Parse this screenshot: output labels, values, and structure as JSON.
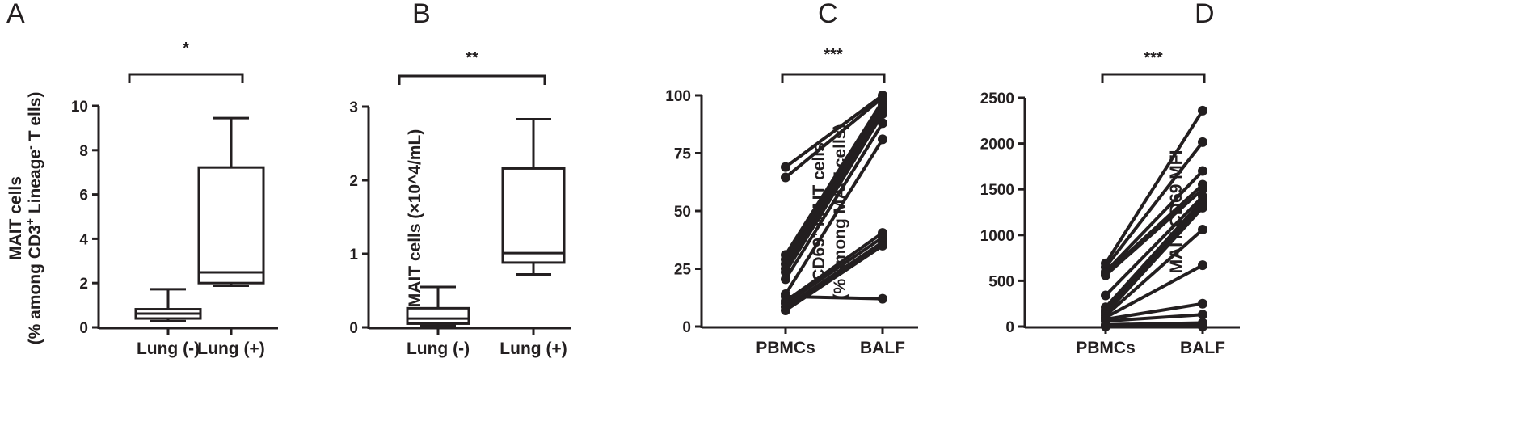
{
  "chart_data": [
    {
      "panel": "A",
      "type": "box",
      "categories": [
        "Lung (-)",
        "Lung (+)"
      ],
      "ylabel": "MAIT cells",
      "ylabel_line2": {
        "pre": "(% among CD3",
        "sup1": "+",
        "mid": " Lineage",
        "sup2": "-",
        "post": " T ells)"
      },
      "ylim": [
        0,
        10
      ],
      "yticks": [
        0,
        2,
        4,
        6,
        8,
        10
      ],
      "significance": "*",
      "boxes": [
        {
          "min": 0.28,
          "q1": 0.4,
          "median": 0.62,
          "q3": 0.82,
          "max": 1.72
        },
        {
          "min": 1.88,
          "q1": 2.0,
          "median": 2.48,
          "q3": 7.22,
          "max": 9.45
        }
      ]
    },
    {
      "panel": "B",
      "type": "box",
      "categories": [
        "Lung (-)",
        "Lung (+)"
      ],
      "ylabel": "MAIT cells (×10^4/mL)",
      "ylim": [
        0,
        3
      ],
      "yticks": [
        0,
        1,
        2,
        3
      ],
      "significance": "**",
      "boxes": [
        {
          "min": 0.02,
          "q1": 0.05,
          "median": 0.12,
          "q3": 0.26,
          "max": 0.55
        },
        {
          "min": 0.72,
          "q1": 0.88,
          "median": 1.01,
          "q3": 2.16,
          "max": 2.83
        }
      ]
    },
    {
      "panel": "C",
      "type": "paired-line",
      "categories": [
        "PBMCs",
        "BALF"
      ],
      "ylabel_line1": {
        "pre": "CD69",
        "sup": "+",
        "post": " MAIT cells"
      },
      "ylabel_line2": "(% among MAIT cells)",
      "ylim": [
        0,
        100
      ],
      "yticks": [
        0,
        25,
        50,
        75,
        100
      ],
      "significance": "***",
      "pairs": [
        [
          69,
          100
        ],
        [
          64.5,
          99
        ],
        [
          31,
          97.5
        ],
        [
          29,
          96
        ],
        [
          27,
          94.5
        ],
        [
          25,
          93
        ],
        [
          23.5,
          92
        ],
        [
          20.5,
          88
        ],
        [
          14,
          81
        ],
        [
          13,
          12
        ],
        [
          11,
          40.5
        ],
        [
          10,
          38.5
        ],
        [
          8.5,
          36.5
        ],
        [
          7,
          35
        ]
      ]
    },
    {
      "panel": "D",
      "type": "paired-line",
      "categories": [
        "PBMCs",
        "BALF"
      ],
      "ylabel": "MAIT CD69 MFI",
      "ylim": [
        0,
        2500
      ],
      "yticks": [
        0,
        500,
        1000,
        1500,
        2000,
        2500
      ],
      "significance": "***",
      "pairs": [
        [
          690,
          2360
        ],
        [
          650,
          2015
        ],
        [
          600,
          1700
        ],
        [
          580,
          1550
        ],
        [
          560,
          1500
        ],
        [
          340,
          1420
        ],
        [
          210,
          1380
        ],
        [
          180,
          1350
        ],
        [
          160,
          1320
        ],
        [
          140,
          1300
        ],
        [
          120,
          1060
        ],
        [
          100,
          670
        ],
        [
          80,
          250
        ],
        [
          60,
          130
        ],
        [
          20,
          40
        ],
        [
          10,
          20
        ],
        [
          5,
          10
        ],
        [
          0,
          0
        ]
      ]
    }
  ]
}
